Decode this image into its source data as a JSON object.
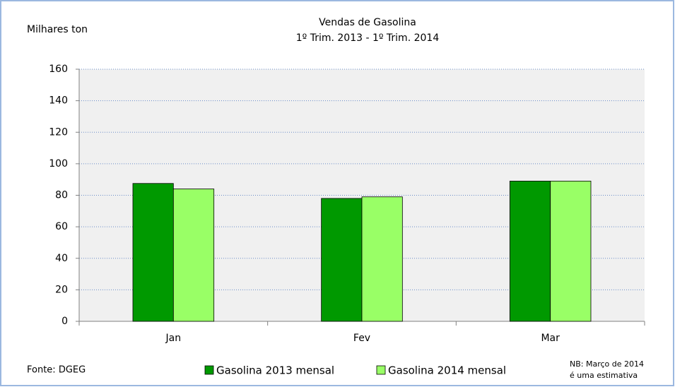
{
  "chart_data": {
    "type": "bar",
    "title": [
      "Vendas de Gasolina",
      "1º Trim. 2013 - 1º Trim. 2014"
    ],
    "y_label": "Milhares ton",
    "source": "Fonte: DGEG",
    "note": [
      "NB: Março de 2014",
      "é uma estimativa"
    ],
    "categories": [
      "Jan",
      "Fev",
      "Mar"
    ],
    "series": [
      {
        "name": "Gasolina 2013 mensal",
        "color": "#009900",
        "values": [
          87.5,
          78,
          89
        ]
      },
      {
        "name": "Gasolina 2014 mensal",
        "color": "#99ff66",
        "values": [
          84,
          79,
          89
        ]
      }
    ],
    "ylim": [
      0,
      160
    ],
    "yticks": [
      0,
      20,
      40,
      60,
      80,
      100,
      120,
      140,
      160
    ],
    "grid": true
  }
}
